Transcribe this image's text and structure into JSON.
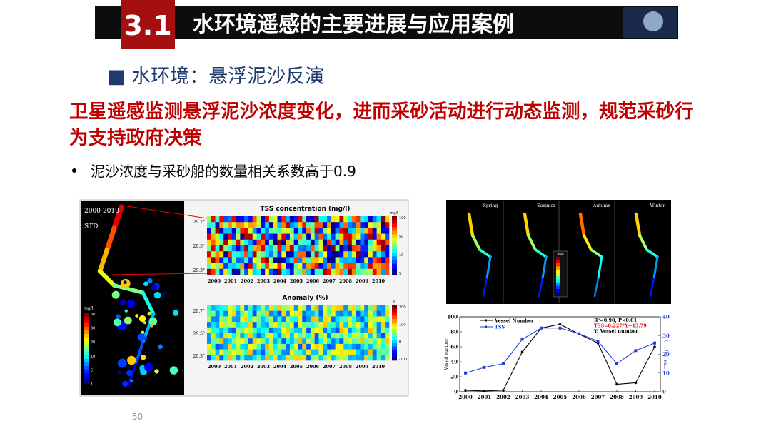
{
  "header": {
    "section": "3.1",
    "title": "水环境遥感的主要进展与应用案例"
  },
  "subtitle": "■ 水环境：悬浮泥沙反演",
  "highlight": "卫星遥感监测悬浮泥沙浓度变化，进而采砂活动进行动态监测，规范采砂行为支持政府决策",
  "bullet": "泥沙浓度与采砂船的数量相关系数高于0.9",
  "page_number": "50",
  "figure_left": {
    "map_labels": [
      "2000-2010",
      "STD."
    ],
    "map_legend": {
      "unit": "mg/l",
      "ticks": [
        "50",
        "30",
        "20",
        "10",
        "5",
        "1"
      ]
    },
    "heatmaps": [
      {
        "title": "TSS concentration (mg/l)",
        "lat_labels": [
          "29.7°",
          "29.5°",
          "29.3°"
        ],
        "unit": "mg/l",
        "colorbar_ticks": [
          "100",
          "50",
          "10",
          "5"
        ]
      },
      {
        "title": "Anomaly (%)",
        "lat_labels": [
          "29.7°",
          "29.5°",
          "29.3°"
        ],
        "unit": "%",
        "colorbar_ticks": [
          "200",
          "100",
          "0",
          "-100"
        ]
      }
    ],
    "years": [
      "2000",
      "2001",
      "2002",
      "2003",
      "2004",
      "2005",
      "2006",
      "2007",
      "2008",
      "2009",
      "2010"
    ]
  },
  "figure_right": {
    "seasons": [
      "Spring",
      "Summer",
      "Autumn",
      "Winter"
    ],
    "colorbar_unit": "mg/l"
  },
  "chart_data": {
    "type": "line",
    "x": [
      2000,
      2001,
      2002,
      2003,
      2004,
      2005,
      2006,
      2007,
      2008,
      2009,
      2010
    ],
    "series": [
      {
        "name": "Vessel Number",
        "color": "#000000",
        "values": [
          2,
          1,
          2,
          53,
          85,
          90,
          77,
          65,
          10,
          12,
          60
        ]
      },
      {
        "name": "TSS",
        "color": "#1f3fd6",
        "axis": "y2",
        "values": [
          10,
          13,
          15,
          28,
          34,
          34,
          31,
          27,
          15,
          22,
          26
        ]
      }
    ],
    "xlim": [
      2000,
      2010
    ],
    "xticks": [
      2000,
      2001,
      2002,
      2003,
      2004,
      2005,
      2006,
      2007,
      2008,
      2009,
      2010
    ],
    "ylim": [
      0,
      100
    ],
    "yticks": [
      0,
      20,
      40,
      60,
      80,
      100
    ],
    "y2lim": [
      0,
      40
    ],
    "y2ticks": [
      0,
      10,
      20,
      30,
      40
    ],
    "y_label": "Vessel number",
    "y2_label": "TSS (mg L⁻¹)",
    "annotations": [
      "R²=0.90, P<0.01",
      "TSS=0.227*Y+13.79",
      "Y: Vessel number"
    ]
  }
}
